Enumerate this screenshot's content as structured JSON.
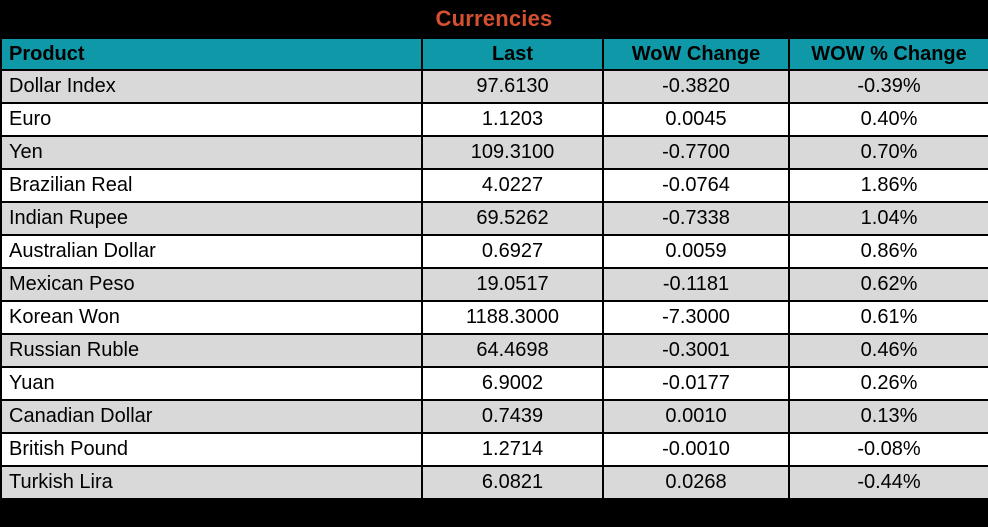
{
  "title": "Currencies",
  "colors": {
    "title_text": "#D5502F",
    "title_bg": "#000000",
    "header_bg": "#0F98A8",
    "header_text": "#000000",
    "row_alt_bg": "#D9D9D9",
    "row_bg": "#FFFFFF",
    "border": "#000000"
  },
  "chart_data": {
    "type": "table",
    "title": "Currencies",
    "columns": [
      "Product",
      "Last",
      "WoW Change",
      "WOW % Change"
    ],
    "column_keys": [
      "product",
      "last",
      "wow-change",
      "wow-pct-change"
    ],
    "rows": [
      [
        "Dollar Index",
        "97.6130",
        "-0.3820",
        "-0.39%"
      ],
      [
        "Euro",
        "1.1203",
        "0.0045",
        "0.40%"
      ],
      [
        "Yen",
        "109.3100",
        "-0.7700",
        "0.70%"
      ],
      [
        "Brazilian Real",
        "4.0227",
        "-0.0764",
        "1.86%"
      ],
      [
        "Indian Rupee",
        "69.5262",
        "-0.7338",
        "1.04%"
      ],
      [
        "Australian Dollar",
        "0.6927",
        "0.0059",
        "0.86%"
      ],
      [
        "Mexican Peso",
        "19.0517",
        "-0.1181",
        "0.62%"
      ],
      [
        "Korean Won",
        "1188.3000",
        "-7.3000",
        "0.61%"
      ],
      [
        "Russian Ruble",
        "64.4698",
        "-0.3001",
        "0.46%"
      ],
      [
        "Yuan",
        "6.9002",
        "-0.0177",
        "0.26%"
      ],
      [
        "Canadian Dollar",
        "0.7439",
        "0.0010",
        "0.13%"
      ],
      [
        "British Pound",
        "1.2714",
        "-0.0010",
        "-0.08%"
      ],
      [
        "Turkish Lira",
        "6.0821",
        "0.0268",
        "-0.44%"
      ]
    ]
  }
}
